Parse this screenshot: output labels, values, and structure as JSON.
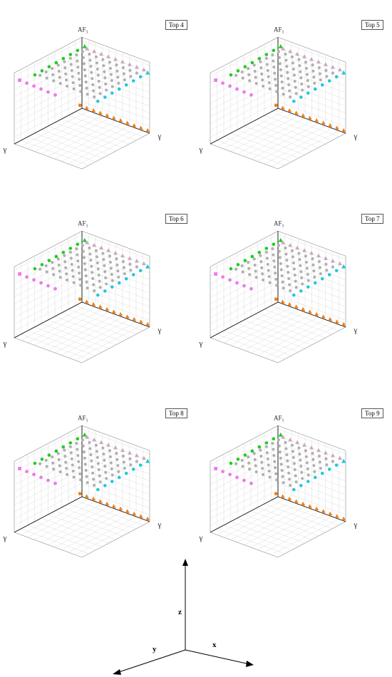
{
  "chart_data": {
    "type": "scatter",
    "projection": "3d",
    "z_axis_label": "AF",
    "z_axis_subscript": "1",
    "axis_symbol": "γ",
    "panels": [
      {
        "label": "Top 4"
      },
      {
        "label": "Top 5"
      },
      {
        "label": "Top 6"
      },
      {
        "label": "Top 7"
      },
      {
        "label": "Top 8"
      },
      {
        "label": "Top 9"
      }
    ],
    "series_colors": {
      "grid": "#b0b0b0",
      "magenta": "#ee7aee",
      "green": "#22cc22",
      "cyan": "#22c8dc",
      "mauve": "#c8a8c0",
      "orange": "#f08018"
    }
  },
  "axes_legend": {
    "z": "z",
    "y": "y",
    "x": "x"
  }
}
